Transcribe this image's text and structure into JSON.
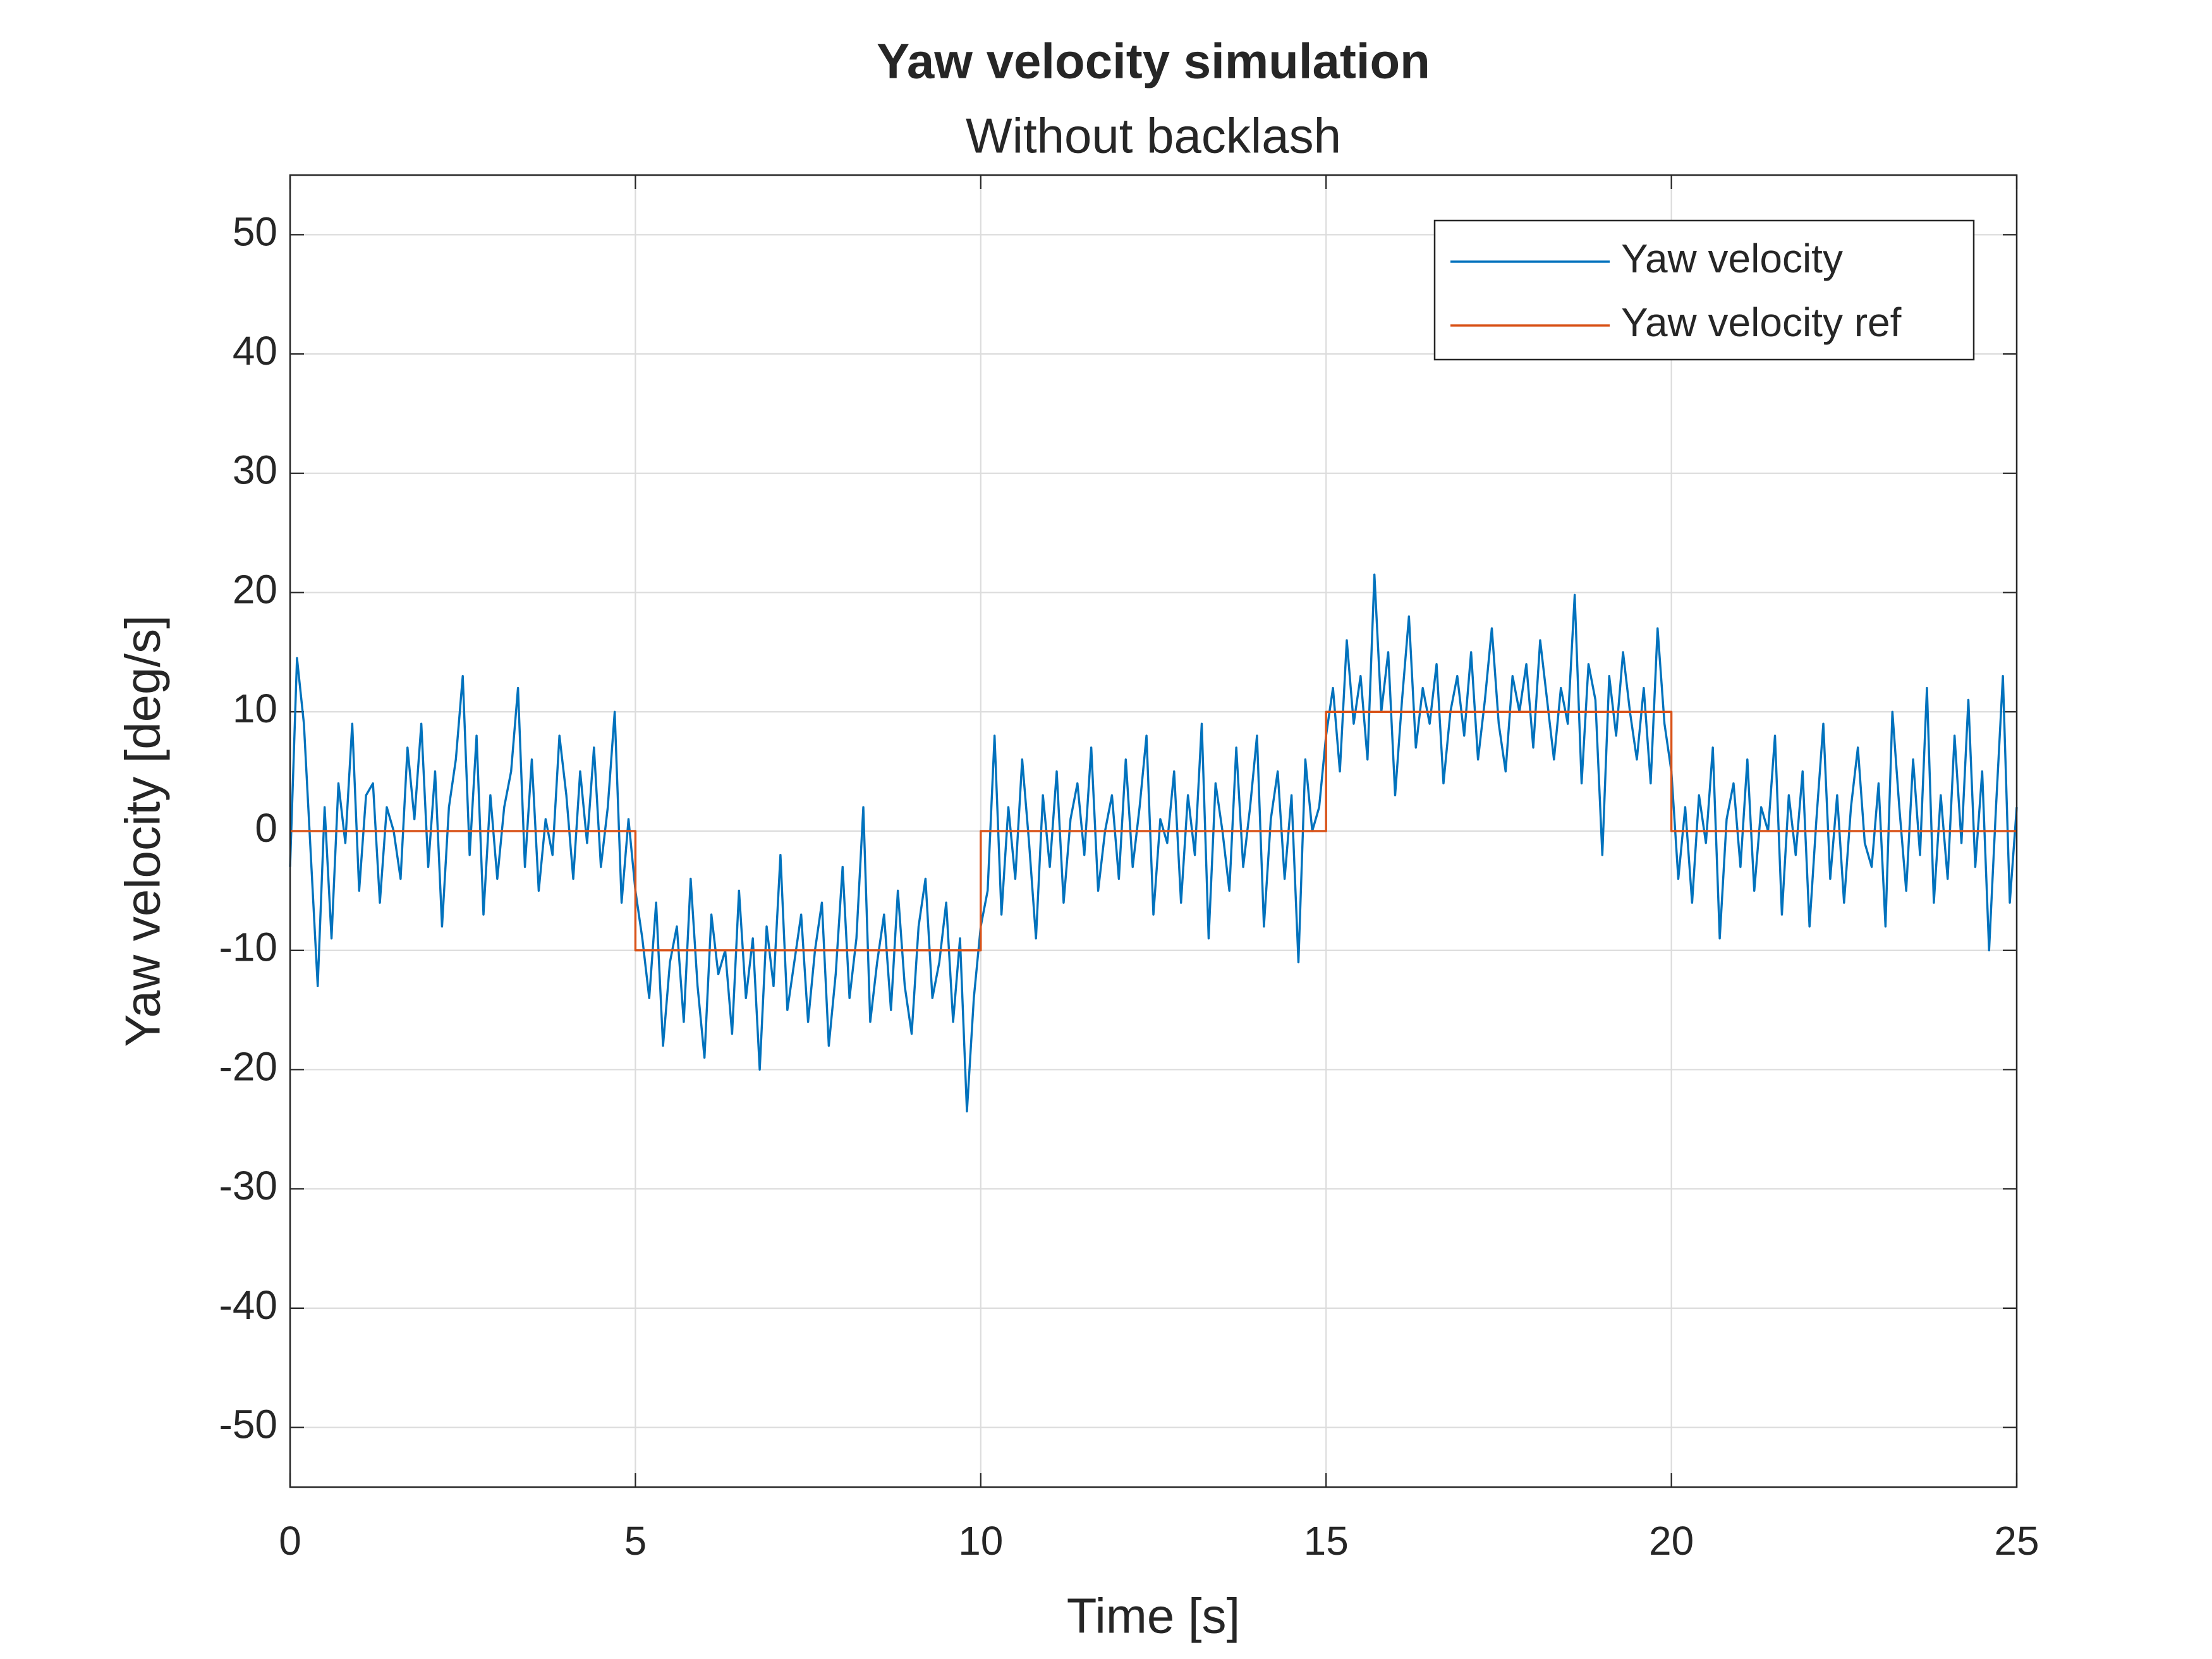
{
  "chart_data": {
    "type": "line",
    "title": "Yaw velocity simulation",
    "subtitle": "Without backlash",
    "xlabel": "Time [s]",
    "ylabel": "Yaw velocity [deg/s]",
    "xlim": [
      0,
      25
    ],
    "xticks": [
      0,
      5,
      10,
      15,
      20,
      25
    ],
    "ylim": [
      -55,
      55
    ],
    "yticks": [
      -50,
      -40,
      -30,
      -20,
      -10,
      0,
      10,
      20,
      30,
      40,
      50
    ],
    "grid": true,
    "legend": "upper right",
    "series": [
      {
        "name": "Yaw velocity",
        "color": "#0072BD",
        "x": [
          0,
          0.1,
          0.2,
          0.3,
          0.4,
          0.5,
          0.6,
          0.7,
          0.8,
          0.9,
          1,
          1.1,
          1.2,
          1.3,
          1.4,
          1.5,
          1.6,
          1.7,
          1.8,
          1.9,
          2,
          2.1,
          2.2,
          2.3,
          2.4,
          2.5,
          2.6,
          2.7,
          2.8,
          2.9,
          3,
          3.1,
          3.2,
          3.3,
          3.4,
          3.5,
          3.6,
          3.7,
          3.8,
          3.9,
          4,
          4.1,
          4.2,
          4.3,
          4.4,
          4.5,
          4.6,
          4.7,
          4.8,
          4.9,
          5,
          5.1,
          5.2,
          5.3,
          5.4,
          5.5,
          5.6,
          5.7,
          5.8,
          5.9,
          6,
          6.1,
          6.2,
          6.3,
          6.4,
          6.5,
          6.6,
          6.7,
          6.8,
          6.9,
          7,
          7.1,
          7.2,
          7.3,
          7.4,
          7.5,
          7.6,
          7.7,
          7.8,
          7.9,
          8,
          8.1,
          8.2,
          8.3,
          8.4,
          8.5,
          8.6,
          8.7,
          8.8,
          8.9,
          9,
          9.1,
          9.2,
          9.3,
          9.4,
          9.5,
          9.6,
          9.7,
          9.8,
          9.9,
          10,
          10.1,
          10.2,
          10.3,
          10.4,
          10.5,
          10.6,
          10.7,
          10.8,
          10.9,
          11,
          11.1,
          11.2,
          11.3,
          11.4,
          11.5,
          11.6,
          11.7,
          11.8,
          11.9,
          12,
          12.1,
          12.2,
          12.3,
          12.4,
          12.5,
          12.6,
          12.7,
          12.8,
          12.9,
          13,
          13.1,
          13.2,
          13.3,
          13.4,
          13.5,
          13.6,
          13.7,
          13.8,
          13.9,
          14,
          14.1,
          14.2,
          14.3,
          14.4,
          14.5,
          14.6,
          14.7,
          14.8,
          14.9,
          15,
          15.1,
          15.2,
          15.3,
          15.4,
          15.5,
          15.6,
          15.7,
          15.8,
          15.9,
          16,
          16.1,
          16.2,
          16.3,
          16.4,
          16.5,
          16.6,
          16.7,
          16.8,
          16.9,
          17,
          17.1,
          17.2,
          17.3,
          17.4,
          17.5,
          17.6,
          17.7,
          17.8,
          17.9,
          18,
          18.1,
          18.2,
          18.3,
          18.4,
          18.5,
          18.6,
          18.7,
          18.8,
          18.9,
          19,
          19.1,
          19.2,
          19.3,
          19.4,
          19.5,
          19.6,
          19.7,
          19.8,
          19.9,
          20,
          20.1,
          20.2,
          20.3,
          20.4,
          20.5,
          20.6,
          20.7,
          20.8,
          20.9,
          21,
          21.1,
          21.2,
          21.3,
          21.4,
          21.5,
          21.6,
          21.7,
          21.8,
          21.9,
          22,
          22.1,
          22.2,
          22.3,
          22.4,
          22.5,
          22.6,
          22.7,
          22.8,
          22.9,
          23,
          23.1,
          23.2,
          23.3,
          23.4,
          23.5,
          23.6,
          23.7,
          23.8,
          23.9,
          24,
          24.1,
          24.2,
          24.3,
          24.4,
          24.5,
          24.6,
          24.7,
          24.8,
          24.9,
          25
        ],
        "values": [
          -3,
          14.5,
          9,
          -2,
          -13,
          2,
          -9,
          4,
          -1,
          9,
          -5,
          3,
          4,
          -6,
          2,
          0,
          -4,
          7,
          1,
          9,
          -3,
          5,
          -8,
          2,
          6,
          13,
          -2,
          8,
          -7,
          3,
          -4,
          2,
          5,
          12,
          -3,
          6,
          -5,
          1,
          -2,
          8,
          3,
          -4,
          5,
          -1,
          7,
          -3,
          2,
          10,
          -6,
          1,
          -5,
          -9,
          -14,
          -6,
          -18,
          -11,
          -8,
          -16,
          -4,
          -13,
          -19,
          -7,
          -12,
          -10,
          -17,
          -5,
          -14,
          -9,
          -20,
          -8,
          -13,
          -2,
          -15,
          -11,
          -7,
          -16,
          -10,
          -6,
          -18,
          -12,
          -3,
          -14,
          -9,
          2,
          -16,
          -11,
          -7,
          -15,
          -5,
          -13,
          -17,
          -8,
          -4,
          -14,
          -11,
          -6,
          -16,
          -9,
          -23.5,
          -14,
          -8,
          -5,
          8,
          -7,
          2,
          -4,
          6,
          -1,
          -9,
          3,
          -3,
          5,
          -6,
          1,
          4,
          -2,
          7,
          -5,
          0,
          3,
          -4,
          6,
          -3,
          2,
          8,
          -7,
          1,
          -1,
          5,
          -6,
          3,
          -2,
          9,
          -9,
          4,
          0,
          -5,
          7,
          -3,
          2,
          8,
          -8,
          1,
          5,
          -4,
          3,
          -11,
          6,
          0,
          2,
          8,
          12,
          5,
          16,
          9,
          13,
          6,
          21.5,
          10,
          15,
          3,
          11,
          18,
          7,
          12,
          9,
          14,
          4,
          10,
          13,
          8,
          15,
          6,
          11,
          17,
          9,
          5,
          13,
          10,
          14,
          7,
          16,
          11,
          6,
          12,
          9,
          19.8,
          4,
          14,
          11,
          -2,
          13,
          8,
          15,
          10,
          6,
          12,
          4,
          17,
          9,
          5,
          -4,
          2,
          -6,
          3,
          -1,
          7,
          -9,
          1,
          4,
          -3,
          6,
          -5,
          2,
          0,
          8,
          -7,
          3,
          -2,
          5,
          -8,
          1,
          9,
          -4,
          3,
          -6,
          2,
          7,
          -1,
          -3,
          4,
          -8,
          10,
          2,
          -5,
          6,
          -2,
          12,
          -6,
          3,
          -4,
          8,
          -1,
          11,
          -3,
          5,
          -10,
          2,
          13,
          -6,
          2
        ]
      },
      {
        "name": "Yaw velocity ref",
        "color": "#D95319",
        "x": [
          0,
          5,
          5,
          10,
          10,
          15,
          15,
          20,
          20,
          25
        ],
        "values": [
          0,
          0,
          -10,
          -10,
          0,
          0,
          10,
          10,
          0,
          0
        ]
      }
    ]
  }
}
